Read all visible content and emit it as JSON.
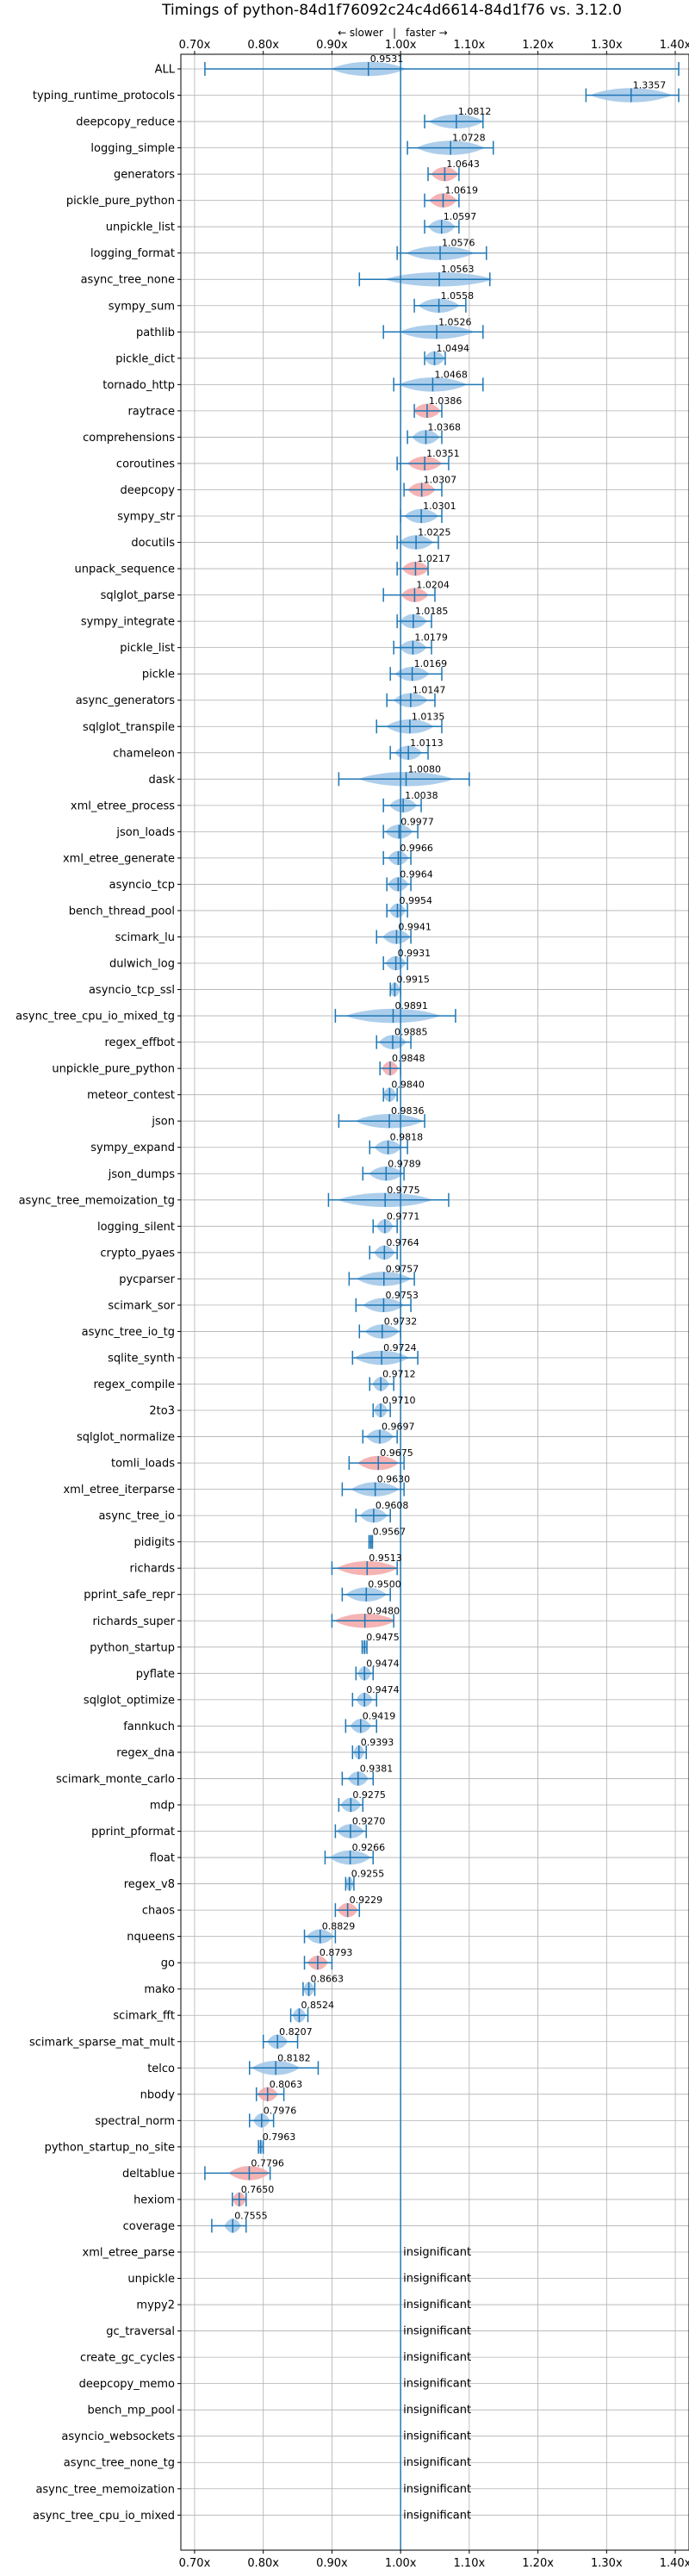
{
  "chart_data": {
    "type": "violin",
    "title": "Timings of python-84d1f76092c24c4d6614-84d1f76 vs. 3.12.0",
    "subtitle_slower": "← slower",
    "subtitle_faster": "faster →",
    "subtitle_sep": "|",
    "x_ticks": [
      {
        "value": 0.7,
        "label": "0.70x"
      },
      {
        "value": 0.8,
        "label": "0.80x"
      },
      {
        "value": 0.9,
        "label": "0.90x"
      },
      {
        "value": 1.0,
        "label": "1.00x"
      },
      {
        "value": 1.1,
        "label": "1.10x"
      },
      {
        "value": 1.2,
        "label": "1.20x"
      },
      {
        "value": 1.3,
        "label": "1.30x"
      },
      {
        "value": 1.4,
        "label": "1.40x"
      }
    ],
    "xlim": [
      0.68,
      1.42
    ],
    "grid": true,
    "reference_line": 1.0,
    "insignificant_label": "insignificant",
    "colors": {
      "violin_blue": "#9fc5e8",
      "violin_red": "#f4a6a6",
      "line": "#1f77b4",
      "grid": "#b0b0b0"
    },
    "benchmarks": [
      {
        "name": "ALL",
        "value": 0.9531,
        "label": "0.9531",
        "min": 0.715,
        "max": 1.405,
        "spread": 0.055,
        "color": "blue"
      },
      {
        "name": "typing_runtime_protocols",
        "value": 1.3357,
        "label": "1.3357",
        "min": 1.27,
        "max": 1.405,
        "spread": 0.06,
        "color": "blue"
      },
      {
        "name": "deepcopy_reduce",
        "value": 1.0812,
        "label": "1.0812",
        "min": 1.035,
        "max": 1.12,
        "spread": 0.04,
        "color": "blue"
      },
      {
        "name": "logging_simple",
        "value": 1.0728,
        "label": "1.0728",
        "min": 1.01,
        "max": 1.135,
        "spread": 0.05,
        "color": "blue"
      },
      {
        "name": "generators",
        "value": 1.0643,
        "label": "1.0643",
        "min": 1.04,
        "max": 1.085,
        "spread": 0.02,
        "color": "red"
      },
      {
        "name": "pickle_pure_python",
        "value": 1.0619,
        "label": "1.0619",
        "min": 1.035,
        "max": 1.085,
        "spread": 0.02,
        "color": "red"
      },
      {
        "name": "unpickle_list",
        "value": 1.0597,
        "label": "1.0597",
        "min": 1.035,
        "max": 1.085,
        "spread": 0.02,
        "color": "blue"
      },
      {
        "name": "logging_format",
        "value": 1.0576,
        "label": "1.0576",
        "min": 0.995,
        "max": 1.125,
        "spread": 0.05,
        "color": "blue"
      },
      {
        "name": "async_tree_none",
        "value": 1.0563,
        "label": "1.0563",
        "min": 0.94,
        "max": 1.13,
        "spread": 0.08,
        "color": "blue"
      },
      {
        "name": "sympy_sum",
        "value": 1.0558,
        "label": "1.0558",
        "min": 1.02,
        "max": 1.095,
        "spread": 0.03,
        "color": "blue"
      },
      {
        "name": "pathlib",
        "value": 1.0526,
        "label": "1.0526",
        "min": 0.975,
        "max": 1.12,
        "spread": 0.055,
        "color": "blue"
      },
      {
        "name": "pickle_dict",
        "value": 1.0494,
        "label": "1.0494",
        "min": 1.035,
        "max": 1.065,
        "spread": 0.015,
        "color": "blue"
      },
      {
        "name": "tornado_http",
        "value": 1.0468,
        "label": "1.0468",
        "min": 0.99,
        "max": 1.12,
        "spread": 0.05,
        "color": "blue"
      },
      {
        "name": "raytrace",
        "value": 1.0386,
        "label": "1.0386",
        "min": 1.02,
        "max": 1.06,
        "spread": 0.02,
        "color": "red"
      },
      {
        "name": "comprehensions",
        "value": 1.0368,
        "label": "1.0368",
        "min": 1.01,
        "max": 1.06,
        "spread": 0.02,
        "color": "blue"
      },
      {
        "name": "coroutines",
        "value": 1.0351,
        "label": "1.0351",
        "min": 0.995,
        "max": 1.07,
        "spread": 0.025,
        "color": "red"
      },
      {
        "name": "deepcopy",
        "value": 1.0307,
        "label": "1.0307",
        "min": 1.005,
        "max": 1.06,
        "spread": 0.02,
        "color": "red"
      },
      {
        "name": "sympy_str",
        "value": 1.0301,
        "label": "1.0301",
        "min": 1.0,
        "max": 1.06,
        "spread": 0.025,
        "color": "blue"
      },
      {
        "name": "docutils",
        "value": 1.0225,
        "label": "1.0225",
        "min": 0.995,
        "max": 1.055,
        "spread": 0.025,
        "color": "blue"
      },
      {
        "name": "unpack_sequence",
        "value": 1.0217,
        "label": "1.0217",
        "min": 0.995,
        "max": 1.04,
        "spread": 0.02,
        "color": "red"
      },
      {
        "name": "sqlglot_parse",
        "value": 1.0204,
        "label": "1.0204",
        "min": 0.975,
        "max": 1.05,
        "spread": 0.02,
        "color": "red"
      },
      {
        "name": "sympy_integrate",
        "value": 1.0185,
        "label": "1.0185",
        "min": 0.995,
        "max": 1.045,
        "spread": 0.02,
        "color": "blue"
      },
      {
        "name": "pickle_list",
        "value": 1.0179,
        "label": "1.0179",
        "min": 0.99,
        "max": 1.045,
        "spread": 0.02,
        "color": "blue"
      },
      {
        "name": "pickle",
        "value": 1.0169,
        "label": "1.0169",
        "min": 0.985,
        "max": 1.06,
        "spread": 0.025,
        "color": "blue"
      },
      {
        "name": "async_generators",
        "value": 1.0147,
        "label": "1.0147",
        "min": 0.98,
        "max": 1.05,
        "spread": 0.025,
        "color": "blue"
      },
      {
        "name": "sqlglot_transpile",
        "value": 1.0135,
        "label": "1.0135",
        "min": 0.965,
        "max": 1.06,
        "spread": 0.035,
        "color": "blue"
      },
      {
        "name": "chameleon",
        "value": 1.0113,
        "label": "1.0113",
        "min": 0.985,
        "max": 1.04,
        "spread": 0.02,
        "color": "blue"
      },
      {
        "name": "dask",
        "value": 1.008,
        "label": "1.0080",
        "min": 0.91,
        "max": 1.1,
        "spread": 0.07,
        "color": "blue"
      },
      {
        "name": "xml_etree_process",
        "value": 1.0038,
        "label": "1.0038",
        "min": 0.975,
        "max": 1.03,
        "spread": 0.02,
        "color": "blue"
      },
      {
        "name": "json_loads",
        "value": 0.9977,
        "label": "0.9977",
        "min": 0.975,
        "max": 1.025,
        "spread": 0.02,
        "color": "blue"
      },
      {
        "name": "xml_etree_generate",
        "value": 0.9966,
        "label": "0.9966",
        "min": 0.975,
        "max": 1.015,
        "spread": 0.015,
        "color": "blue"
      },
      {
        "name": "asyncio_tcp",
        "value": 0.9964,
        "label": "0.9964",
        "min": 0.98,
        "max": 1.015,
        "spread": 0.015,
        "color": "blue"
      },
      {
        "name": "bench_thread_pool",
        "value": 0.9954,
        "label": "0.9954",
        "min": 0.98,
        "max": 1.01,
        "spread": 0.012,
        "color": "blue"
      },
      {
        "name": "scimark_lu",
        "value": 0.9941,
        "label": "0.9941",
        "min": 0.965,
        "max": 1.015,
        "spread": 0.02,
        "color": "blue"
      },
      {
        "name": "dulwich_log",
        "value": 0.9931,
        "label": "0.9931",
        "min": 0.975,
        "max": 1.01,
        "spread": 0.015,
        "color": "blue"
      },
      {
        "name": "asyncio_tcp_ssl",
        "value": 0.9915,
        "label": "0.9915",
        "min": 0.985,
        "max": 1.0,
        "spread": 0.008,
        "color": "blue"
      },
      {
        "name": "async_tree_cpu_io_mixed_tg",
        "value": 0.9891,
        "label": "0.9891",
        "min": 0.905,
        "max": 1.08,
        "spread": 0.07,
        "color": "blue"
      },
      {
        "name": "regex_effbot",
        "value": 0.9885,
        "label": "0.9885",
        "min": 0.965,
        "max": 1.015,
        "spread": 0.02,
        "color": "blue"
      },
      {
        "name": "unpickle_pure_python",
        "value": 0.9848,
        "label": "0.9848",
        "min": 0.97,
        "max": 1.0,
        "spread": 0.012,
        "color": "red"
      },
      {
        "name": "meteor_contest",
        "value": 0.984,
        "label": "0.9840",
        "min": 0.975,
        "max": 0.995,
        "spread": 0.01,
        "color": "blue"
      },
      {
        "name": "json",
        "value": 0.9836,
        "label": "0.9836",
        "min": 0.91,
        "max": 1.035,
        "spread": 0.05,
        "color": "blue"
      },
      {
        "name": "sympy_expand",
        "value": 0.9818,
        "label": "0.9818",
        "min": 0.955,
        "max": 1.01,
        "spread": 0.02,
        "color": "blue"
      },
      {
        "name": "json_dumps",
        "value": 0.9789,
        "label": "0.9789",
        "min": 0.945,
        "max": 1.005,
        "spread": 0.025,
        "color": "blue"
      },
      {
        "name": "async_tree_memoization_tg",
        "value": 0.9775,
        "label": "0.9775",
        "min": 0.895,
        "max": 1.07,
        "spread": 0.07,
        "color": "blue"
      },
      {
        "name": "logging_silent",
        "value": 0.9771,
        "label": "0.9771",
        "min": 0.96,
        "max": 0.995,
        "spread": 0.012,
        "color": "blue"
      },
      {
        "name": "crypto_pyaes",
        "value": 0.9764,
        "label": "0.9764",
        "min": 0.955,
        "max": 0.995,
        "spread": 0.015,
        "color": "blue"
      },
      {
        "name": "pycparser",
        "value": 0.9757,
        "label": "0.9757",
        "min": 0.925,
        "max": 1.02,
        "spread": 0.04,
        "color": "blue"
      },
      {
        "name": "scimark_sor",
        "value": 0.9753,
        "label": "0.9753",
        "min": 0.935,
        "max": 1.015,
        "spread": 0.03,
        "color": "blue"
      },
      {
        "name": "async_tree_io_tg",
        "value": 0.9732,
        "label": "0.9732",
        "min": 0.94,
        "max": 1.0,
        "spread": 0.025,
        "color": "blue"
      },
      {
        "name": "sqlite_synth",
        "value": 0.9724,
        "label": "0.9724",
        "min": 0.93,
        "max": 1.025,
        "spread": 0.04,
        "color": "blue"
      },
      {
        "name": "regex_compile",
        "value": 0.9712,
        "label": "0.9712",
        "min": 0.955,
        "max": 0.99,
        "spread": 0.012,
        "color": "blue"
      },
      {
        "name": "2to3",
        "value": 0.971,
        "label": "0.9710",
        "min": 0.96,
        "max": 0.985,
        "spread": 0.01,
        "color": "blue"
      },
      {
        "name": "sqlglot_normalize",
        "value": 0.9697,
        "label": "0.9697",
        "min": 0.945,
        "max": 0.995,
        "spread": 0.02,
        "color": "blue"
      },
      {
        "name": "tomli_loads",
        "value": 0.9675,
        "label": "0.9675",
        "min": 0.925,
        "max": 1.005,
        "spread": 0.03,
        "color": "red"
      },
      {
        "name": "xml_etree_iterparse",
        "value": 0.963,
        "label": "0.9630",
        "min": 0.915,
        "max": 1.005,
        "spread": 0.035,
        "color": "blue"
      },
      {
        "name": "async_tree_io",
        "value": 0.9608,
        "label": "0.9608",
        "min": 0.935,
        "max": 0.985,
        "spread": 0.02,
        "color": "blue"
      },
      {
        "name": "pidigits",
        "value": 0.9567,
        "label": "0.9567",
        "min": 0.954,
        "max": 0.959,
        "spread": 0.003,
        "color": "blue"
      },
      {
        "name": "richards",
        "value": 0.9513,
        "label": "0.9513",
        "min": 0.9,
        "max": 0.995,
        "spread": 0.045,
        "color": "red"
      },
      {
        "name": "pprint_safe_repr",
        "value": 0.95,
        "label": "0.9500",
        "min": 0.915,
        "max": 0.985,
        "spread": 0.03,
        "color": "blue"
      },
      {
        "name": "richards_super",
        "value": 0.948,
        "label": "0.9480",
        "min": 0.9,
        "max": 0.99,
        "spread": 0.045,
        "color": "red"
      },
      {
        "name": "python_startup",
        "value": 0.9475,
        "label": "0.9475",
        "min": 0.944,
        "max": 0.951,
        "spread": 0.004,
        "color": "blue"
      },
      {
        "name": "pyflate",
        "value": 0.9474,
        "label": "0.9474",
        "min": 0.935,
        "max": 0.96,
        "spread": 0.01,
        "color": "blue"
      },
      {
        "name": "sqlglot_optimize",
        "value": 0.9474,
        "label": "0.9474",
        "min": 0.93,
        "max": 0.965,
        "spread": 0.012,
        "color": "blue"
      },
      {
        "name": "fannkuch",
        "value": 0.9419,
        "label": "0.9419",
        "min": 0.92,
        "max": 0.965,
        "spread": 0.015,
        "color": "blue"
      },
      {
        "name": "regex_dna",
        "value": 0.9393,
        "label": "0.9393",
        "min": 0.93,
        "max": 0.95,
        "spread": 0.008,
        "color": "blue"
      },
      {
        "name": "scimark_monte_carlo",
        "value": 0.9381,
        "label": "0.9381",
        "min": 0.915,
        "max": 0.96,
        "spread": 0.015,
        "color": "blue"
      },
      {
        "name": "mdp",
        "value": 0.9275,
        "label": "0.9275",
        "min": 0.91,
        "max": 0.945,
        "spread": 0.015,
        "color": "blue"
      },
      {
        "name": "pprint_pformat",
        "value": 0.927,
        "label": "0.9270",
        "min": 0.905,
        "max": 0.95,
        "spread": 0.02,
        "color": "blue"
      },
      {
        "name": "float",
        "value": 0.9266,
        "label": "0.9266",
        "min": 0.89,
        "max": 0.96,
        "spread": 0.03,
        "color": "blue"
      },
      {
        "name": "regex_v8",
        "value": 0.9255,
        "label": "0.9255",
        "min": 0.92,
        "max": 0.932,
        "spread": 0.006,
        "color": "blue"
      },
      {
        "name": "chaos",
        "value": 0.9229,
        "label": "0.9229",
        "min": 0.905,
        "max": 0.94,
        "spread": 0.015,
        "color": "red"
      },
      {
        "name": "nqueens",
        "value": 0.8829,
        "label": "0.8829",
        "min": 0.86,
        "max": 0.905,
        "spread": 0.02,
        "color": "blue"
      },
      {
        "name": "go",
        "value": 0.8793,
        "label": "0.8793",
        "min": 0.86,
        "max": 0.9,
        "spread": 0.015,
        "color": "red"
      },
      {
        "name": "mako",
        "value": 0.8663,
        "label": "0.8663",
        "min": 0.858,
        "max": 0.875,
        "spread": 0.008,
        "color": "blue"
      },
      {
        "name": "scimark_fft",
        "value": 0.8524,
        "label": "0.8524",
        "min": 0.84,
        "max": 0.865,
        "spread": 0.01,
        "color": "blue"
      },
      {
        "name": "scimark_sparse_mat_mult",
        "value": 0.8207,
        "label": "0.8207",
        "min": 0.8,
        "max": 0.85,
        "spread": 0.015,
        "color": "blue"
      },
      {
        "name": "telco",
        "value": 0.8182,
        "label": "0.8182",
        "min": 0.78,
        "max": 0.88,
        "spread": 0.035,
        "color": "blue"
      },
      {
        "name": "nbody",
        "value": 0.8063,
        "label": "0.8063",
        "min": 0.79,
        "max": 0.83,
        "spread": 0.015,
        "color": "red"
      },
      {
        "name": "spectral_norm",
        "value": 0.7976,
        "label": "0.7976",
        "min": 0.78,
        "max": 0.815,
        "spread": 0.012,
        "color": "blue"
      },
      {
        "name": "python_startup_no_site",
        "value": 0.7963,
        "label": "0.7963",
        "min": 0.793,
        "max": 0.8,
        "spread": 0.004,
        "color": "blue"
      },
      {
        "name": "deltablue",
        "value": 0.7796,
        "label": "0.7796",
        "min": 0.715,
        "max": 0.81,
        "spread": 0.03,
        "color": "red"
      },
      {
        "name": "hexiom",
        "value": 0.765,
        "label": "0.7650",
        "min": 0.755,
        "max": 0.775,
        "spread": 0.01,
        "color": "red"
      },
      {
        "name": "coverage",
        "value": 0.7555,
        "label": "0.7555",
        "min": 0.725,
        "max": 0.775,
        "spread": 0.012,
        "color": "blue"
      },
      {
        "name": "xml_etree_parse",
        "insignificant": true
      },
      {
        "name": "unpickle",
        "insignificant": true
      },
      {
        "name": "mypy2",
        "insignificant": true
      },
      {
        "name": "gc_traversal",
        "insignificant": true
      },
      {
        "name": "create_gc_cycles",
        "insignificant": true
      },
      {
        "name": "deepcopy_memo",
        "insignificant": true
      },
      {
        "name": "bench_mp_pool",
        "insignificant": true
      },
      {
        "name": "asyncio_websockets",
        "insignificant": true
      },
      {
        "name": "async_tree_none_tg",
        "insignificant": true
      },
      {
        "name": "async_tree_memoization",
        "insignificant": true
      },
      {
        "name": "async_tree_cpu_io_mixed",
        "insignificant": true
      }
    ]
  }
}
